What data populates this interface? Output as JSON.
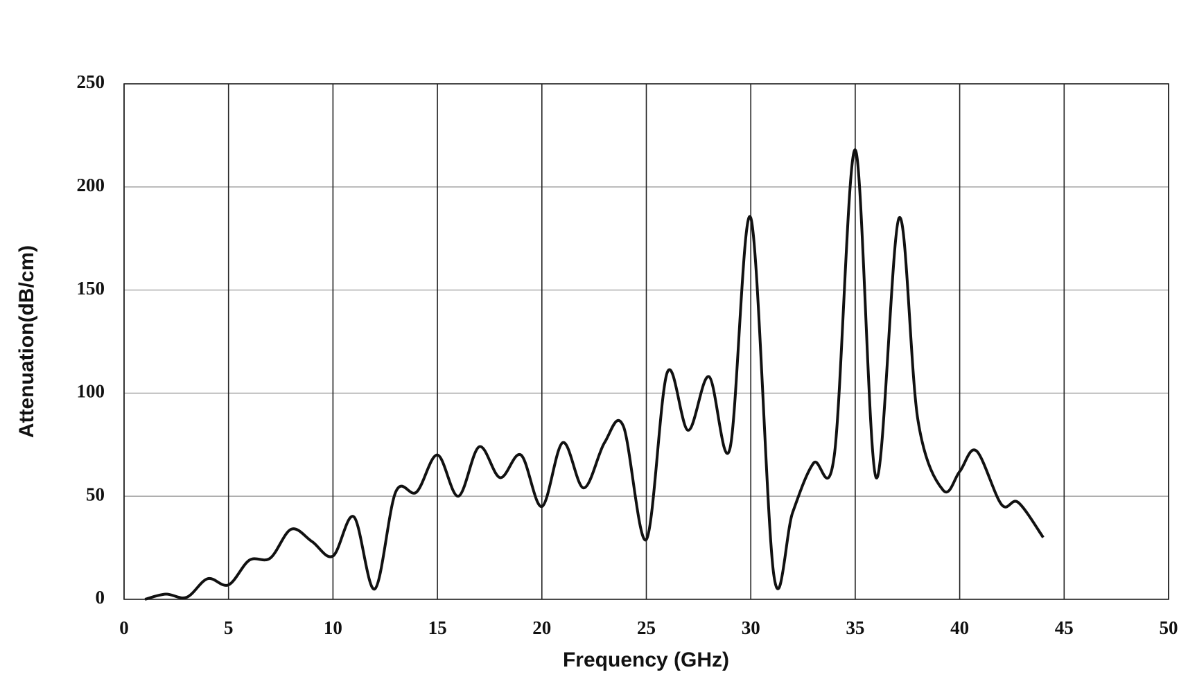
{
  "chart_data": {
    "type": "line",
    "xlabel": "Frequency (GHz)",
    "ylabel": "Attenuation(dB/cm)",
    "x": [
      1,
      2,
      3,
      4,
      5,
      6,
      7,
      8,
      9,
      10,
      11,
      12,
      13,
      14,
      15,
      16,
      17,
      18,
      19,
      20,
      21,
      22,
      23,
      23.9,
      25,
      26,
      27,
      28,
      29,
      30,
      31.1,
      32,
      33,
      34,
      35,
      36,
      37.1,
      38,
      39.2,
      40,
      40.8,
      42,
      42.8,
      44
    ],
    "series": [
      {
        "name": "Attenuation",
        "color": "#111111",
        "values": [
          0,
          2.5,
          1,
          10,
          7,
          19,
          20,
          34,
          28,
          21,
          40,
          5,
          52,
          52,
          70,
          50,
          74,
          59,
          70,
          45,
          76,
          54,
          76,
          84,
          29,
          110,
          82,
          108,
          73,
          185,
          12,
          42,
          66,
          70,
          218,
          59,
          185,
          87,
          53,
          62,
          72,
          46,
          47,
          30
        ]
      }
    ],
    "xlim": [
      0,
      50
    ],
    "xticks": [
      0,
      5,
      10,
      15,
      20,
      25,
      30,
      35,
      40,
      45,
      50
    ],
    "ylim": [
      0,
      250
    ],
    "yticks": [
      0,
      50,
      100,
      150,
      200,
      250
    ],
    "grid": true
  }
}
